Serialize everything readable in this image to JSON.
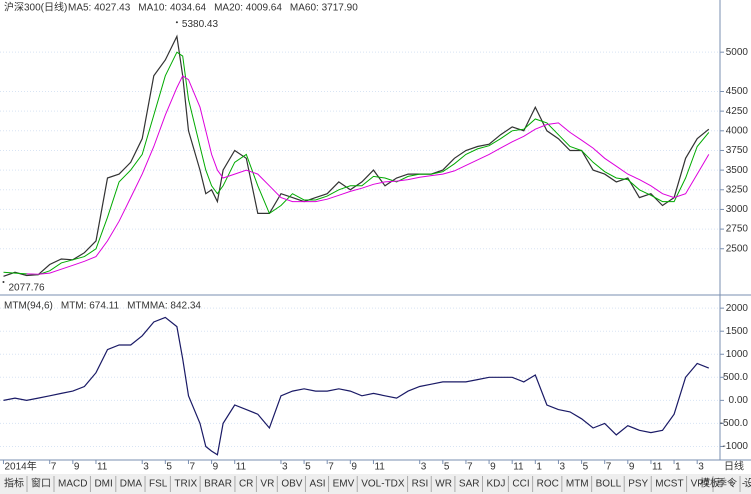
{
  "header": {
    "title": "沪深300(日线)",
    "legend": [
      {
        "text": "MA5: 4027.43",
        "color": "#333333"
      },
      {
        "text": "MA10: 4034.64",
        "color": "#0000ee"
      },
      {
        "text": "MA20: 4009.64",
        "color": "#00aa00"
      },
      {
        "text": "MA60: 3717.90",
        "color": "#dd00dd"
      }
    ]
  },
  "chart_data": [
    {
      "type": "line",
      "panel": "price",
      "x": [
        0,
        1,
        2,
        3,
        4,
        5,
        6,
        7,
        8,
        9,
        10,
        11,
        12,
        13,
        14,
        15,
        15.5,
        16,
        17,
        17.5,
        18,
        18.5,
        19,
        20,
        21,
        22,
        23,
        24,
        25,
        26,
        27,
        28,
        29,
        30,
        31,
        32,
        33,
        34,
        35,
        36,
        37,
        38,
        39,
        40,
        41,
        42,
        43,
        44,
        45,
        46,
        47,
        48,
        49,
        50,
        51,
        52,
        53,
        54,
        55,
        56,
        57,
        58,
        59,
        60,
        61
      ],
      "series": [
        {
          "name": "沪深300(日线)",
          "color": "#333333",
          "values": [
            2150,
            2200,
            2160,
            2170,
            2300,
            2370,
            2360,
            2450,
            2600,
            3400,
            3450,
            3600,
            3900,
            4700,
            4900,
            5200,
            4700,
            4000,
            3500,
            3200,
            3250,
            3100,
            3500,
            3750,
            3650,
            2950,
            2950,
            3200,
            3150,
            3100,
            3150,
            3200,
            3350,
            3250,
            3350,
            3500,
            3300,
            3400,
            3450,
            3450,
            3450,
            3500,
            3650,
            3750,
            3800,
            3830,
            3950,
            4050,
            4000,
            4300,
            4000,
            3900,
            3750,
            3750,
            3500,
            3450,
            3350,
            3400,
            3150,
            3200,
            3050,
            3150,
            3650,
            3900,
            4020
          ]
        },
        {
          "name": "MA20",
          "color": "#00aa00",
          "values": [
            2200,
            2190,
            2180,
            2170,
            2220,
            2320,
            2360,
            2400,
            2500,
            2900,
            3350,
            3500,
            3700,
            4200,
            4700,
            5000,
            4950,
            4400,
            3800,
            3500,
            3300,
            3200,
            3300,
            3600,
            3700,
            3300,
            2950,
            3050,
            3200,
            3120,
            3120,
            3170,
            3250,
            3300,
            3300,
            3420,
            3400,
            3350,
            3420,
            3450,
            3450,
            3480,
            3580,
            3700,
            3770,
            3810,
            3900,
            4000,
            4020,
            4150,
            4100,
            3950,
            3800,
            3750,
            3600,
            3480,
            3400,
            3380,
            3250,
            3180,
            3100,
            3100,
            3400,
            3800,
            3980
          ]
        },
        {
          "name": "MA60",
          "color": "#dd00dd",
          "values": [
            null,
            null,
            2180,
            2175,
            2190,
            2240,
            2290,
            2340,
            2400,
            2600,
            2850,
            3150,
            3450,
            3800,
            4200,
            4550,
            4700,
            4650,
            4300,
            4000,
            3700,
            3500,
            3400,
            3450,
            3500,
            3450,
            3300,
            3150,
            3100,
            3100,
            3100,
            3130,
            3180,
            3230,
            3270,
            3320,
            3350,
            3360,
            3380,
            3410,
            3430,
            3450,
            3490,
            3560,
            3630,
            3700,
            3780,
            3860,
            3930,
            4020,
            4080,
            4100,
            3980,
            3880,
            3780,
            3650,
            3550,
            3450,
            3380,
            3300,
            3200,
            3150,
            3200,
            3450,
            3700
          ]
        }
      ],
      "xlim": [
        -0.3,
        61.8
      ],
      "ylim": [
        1950,
        5460
      ],
      "yticks": [
        2500,
        2750,
        3000,
        3250,
        3500,
        3750,
        4000,
        4250,
        4500,
        5000
      ],
      "annotations": [
        {
          "text": "5380.43",
          "x": 15,
          "y": 5380.43
        },
        {
          "text": "2077.76",
          "x": 0,
          "y": 2077.76
        }
      ],
      "xticks": [
        {
          "value": 0,
          "label": "2014年"
        },
        {
          "value": 4,
          "label": "7"
        },
        {
          "value": 6,
          "label": "9"
        },
        {
          "value": 8,
          "label": "11"
        },
        {
          "value": 12,
          "label": "3"
        },
        {
          "value": 14,
          "label": "5"
        },
        {
          "value": 16,
          "label": "7"
        },
        {
          "value": 18,
          "label": "9"
        },
        {
          "value": 20,
          "label": "11"
        },
        {
          "value": 24,
          "label": "3"
        },
        {
          "value": 26,
          "label": "5"
        },
        {
          "value": 28,
          "label": "7"
        },
        {
          "value": 30,
          "label": "9"
        },
        {
          "value": 32,
          "label": "11"
        },
        {
          "value": 36,
          "label": "3"
        },
        {
          "value": 38,
          "label": "5"
        },
        {
          "value": 40,
          "label": "7"
        },
        {
          "value": 42,
          "label": "9"
        },
        {
          "value": 44,
          "label": "11"
        },
        {
          "value": 46,
          "label": "1"
        },
        {
          "value": 48,
          "label": "3"
        },
        {
          "value": 50,
          "label": "5"
        },
        {
          "value": 52,
          "label": "7"
        },
        {
          "value": 54,
          "label": "9"
        },
        {
          "value": 56,
          "label": "11"
        },
        {
          "value": 58,
          "label": "1"
        },
        {
          "value": 60,
          "label": "3"
        }
      ]
    },
    {
      "type": "line",
      "panel": "indicator",
      "legend": [
        {
          "text": "MTM(94,6)",
          "color": "#333333"
        },
        {
          "text": "MTM: 674.11",
          "color": "#333333"
        },
        {
          "text": "MTMMA: 842.34",
          "color": "#0000ee"
        }
      ],
      "series": [
        {
          "name": "MTM",
          "color": "#1a1a66",
          "values": [
            0,
            50,
            0,
            50,
            100,
            150,
            200,
            300,
            600,
            1100,
            1200,
            1200,
            1400,
            1700,
            1800,
            1600,
            900,
            100,
            -500,
            -1000,
            -1100,
            -1180,
            -500,
            -100,
            -200,
            -300,
            -600,
            100,
            200,
            250,
            200,
            200,
            250,
            200,
            100,
            150,
            100,
            50,
            200,
            300,
            350,
            400,
            400,
            400,
            450,
            500,
            500,
            500,
            400,
            550,
            -100,
            -200,
            -250,
            -400,
            -600,
            -500,
            -750,
            -550,
            -650,
            -700,
            -650,
            -300,
            500,
            800,
            700
          ]
        }
      ],
      "ylim": [
        -1250,
        2220
      ],
      "yticks": [
        2000,
        1500,
        1000,
        {
          "value": 500,
          "label": "500.0"
        },
        {
          "value": 0,
          "label": "0.00"
        },
        {
          "value": -500,
          "label": "-500.0"
        },
        -1000
      ]
    }
  ],
  "tabs": {
    "items": [
      "指标",
      "窗口",
      "MACD",
      "DMI",
      "DMA",
      "FSL",
      "TRIX",
      "BRAR",
      "CR",
      "VR",
      "OBV",
      "ASI",
      "EMV",
      "VOL-TDX",
      "RSI",
      "WR",
      "SAR",
      "KDJ",
      "CCI",
      "ROC",
      "MTM",
      "BOLL",
      "PSY",
      "MCST",
      "VPT",
      "季令",
      "设置"
    ],
    "active": "MTM",
    "right": [
      "模板",
      "+",
      "-"
    ],
    "period": "日线"
  }
}
